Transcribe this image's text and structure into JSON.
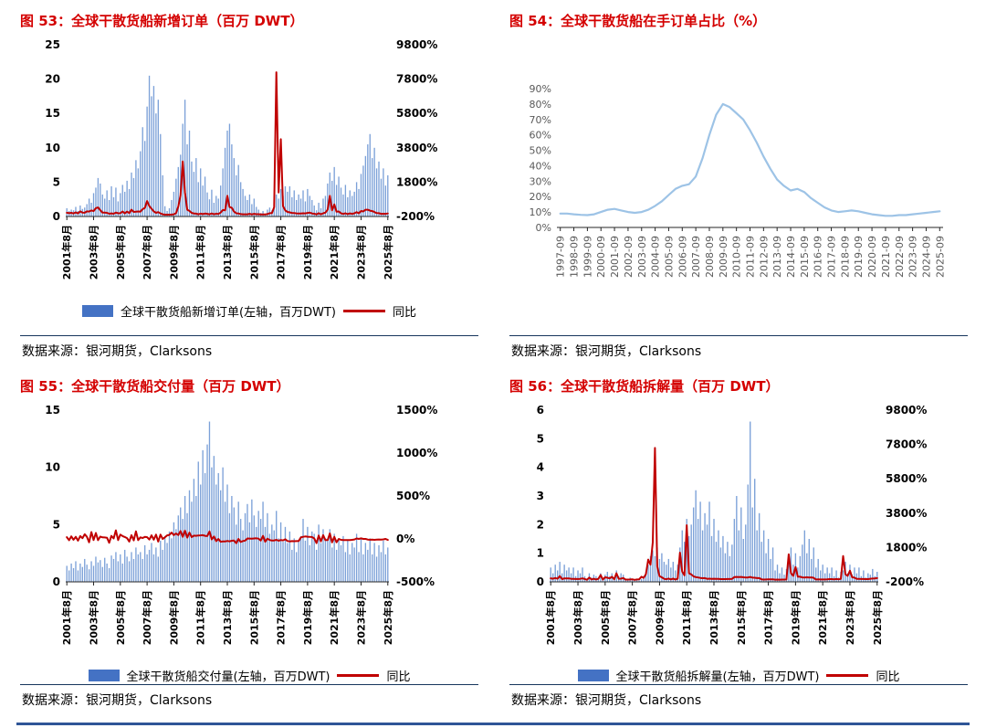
{
  "chart_data": [
    {
      "id": "fig53",
      "type": "combo",
      "title": "图 53：全球干散货船新增订单（百万 DWT）",
      "source": "数据来源：银河期货，Clarksons",
      "bar_color": "#7CA1D8",
      "line_color": "#C00000",
      "legend": [
        {
          "label": "全球干散货船新增订单(左轴，百万DWT)",
          "color": "#4472C4"
        },
        {
          "label": "同比",
          "color": "#C00000"
        }
      ],
      "left_axis": {
        "min": 0,
        "max": 25,
        "tick_vals": [
          0,
          5,
          10,
          15,
          20,
          25
        ],
        "tick_labels": [
          "0",
          "5",
          "10",
          "15",
          "20",
          "25"
        ]
      },
      "right_axis": {
        "min": -200,
        "max": 9800,
        "tick_vals": [
          -200,
          1800,
          3800,
          5800,
          7800,
          9800
        ],
        "tick_labels": [
          "-200%",
          "1800%",
          "3800%",
          "5800%",
          "7800%",
          "9800%"
        ]
      },
      "x_ticks": {
        "idx": [
          0,
          12,
          24,
          36,
          48,
          60,
          72,
          84,
          96,
          108,
          120,
          132,
          144
        ],
        "labels": [
          "2001年8月",
          "2003年8月",
          "2005年8月",
          "2007年8月",
          "2009年8月",
          "2011年8月",
          "2013年8月",
          "2015年8月",
          "2017年8月",
          "2019年8月",
          "2021年8月",
          "2023年8月",
          "2025年8月"
        ]
      },
      "bars": [
        1.2,
        0.8,
        1.0,
        0.9,
        1.4,
        0.8,
        1.6,
        1.1,
        1.3,
        1.8,
        2.6,
        2.0,
        3.4,
        4.2,
        5.6,
        4.8,
        3.2,
        2.6,
        3.8,
        2.4,
        4.4,
        2.8,
        4.2,
        2.2,
        3.4,
        4.6,
        3.6,
        5.2,
        4.0,
        6.4,
        5.6,
        8.2,
        7.0,
        9.5,
        13.0,
        11.0,
        16.0,
        20.5,
        17.5,
        19.0,
        15.0,
        17.0,
        12.0,
        6.0,
        1.5,
        0.8,
        1.2,
        2.4,
        3.6,
        5.5,
        7.2,
        9.0,
        13.5,
        17.0,
        10.5,
        12.5,
        8.0,
        6.5,
        8.5,
        5.0,
        7.0,
        4.5,
        5.8,
        3.5,
        2.5,
        3.9,
        2.0,
        3.0,
        2.6,
        4.5,
        7.0,
        10.0,
        12.5,
        13.5,
        10.5,
        8.5,
        6.0,
        7.5,
        5.0,
        4.0,
        3.0,
        2.4,
        3.2,
        1.8,
        2.6,
        1.4,
        1.0,
        0.5,
        0.8,
        0.4,
        1.0,
        1.3,
        0.9,
        2.2,
        3.2,
        2.6,
        4.0,
        3.0,
        4.4,
        3.6,
        4.4,
        2.8,
        3.8,
        2.4,
        3.2,
        2.6,
        3.8,
        2.2,
        4.0,
        3.0,
        2.4,
        1.6,
        0.9,
        2.0,
        1.2,
        2.6,
        3.0,
        4.8,
        6.4,
        5.2,
        7.2,
        4.6,
        5.8,
        4.2,
        3.2,
        4.6,
        2.8,
        3.8,
        3.0,
        3.6,
        5.0,
        4.0,
        6.2,
        7.4,
        8.8,
        10.5,
        12.0,
        8.5,
        10.0,
        7.0,
        8.0,
        5.5,
        7.0,
        4.5,
        6.0
      ],
      "line_values": [
        20,
        -10,
        15,
        -25,
        40,
        -20,
        100,
        30,
        18,
        100,
        86,
        150,
        113,
        282,
        331,
        167,
        23,
        30,
        12,
        -43,
        -21,
        -42,
        31,
        -15,
        -11,
        92,
        -18,
        86,
        -5,
        191,
        65,
        78,
        94,
        83,
        225,
        300,
        700,
        400,
        250,
        100,
        15,
        55,
        -25,
        -71,
        -91,
        -96,
        -92,
        -86,
        -70,
        -8,
        380,
        1025,
        3000,
        1200,
        192,
        127,
        11,
        -28,
        -37,
        -71,
        -33,
        -64,
        -28,
        -46,
        -71,
        -22,
        -71,
        -33,
        -55,
        29,
        180,
        156,
        1000,
        350,
        304,
        89,
        -14,
        -25,
        -60,
        -70,
        -71,
        -72,
        -47,
        -76,
        -48,
        -65,
        -67,
        -79,
        -75,
        -78,
        -62,
        -7,
        -10,
        340,
        8200,
        1200,
        4300,
        400,
        150,
        64,
        38,
        8,
        -5,
        -20,
        -27,
        -28,
        -14,
        -21,
        5,
        25,
        -25,
        -38,
        -76,
        -9,
        -70,
        -13,
        25,
        200,
        1000,
        160,
        500,
        77,
        93,
        -13,
        -50,
        -12,
        -61,
        -17,
        -48,
        -14,
        56,
        -13,
        121,
        95,
        193,
        192,
        140,
        113,
        61,
        -5,
        -9,
        -48,
        -42,
        -47,
        -25
      ]
    },
    {
      "id": "fig54",
      "type": "line",
      "title": "图 54：全球干散货船在手订单占比（%）",
      "source": "数据来源：银河期货，Clarksons",
      "line_color": "#9DC3E6",
      "left_axis": {
        "min": 0,
        "max": 90,
        "tick_vals": [
          0,
          10,
          20,
          30,
          40,
          50,
          60,
          70,
          80,
          90
        ],
        "tick_labels": [
          "0%",
          "10%",
          "20%",
          "30%",
          "40%",
          "50%",
          "60%",
          "70%",
          "80%",
          "90%"
        ]
      },
      "x_ticks": {
        "idx": [
          0,
          2,
          4,
          6,
          8,
          10,
          12,
          14,
          16,
          18,
          20,
          22,
          24,
          26,
          28,
          30,
          32,
          34,
          36,
          38,
          40,
          42,
          44,
          46,
          48,
          50,
          52,
          54,
          56
        ],
        "labels": [
          "1997-09",
          "1998-09",
          "1999-09",
          "2000-09",
          "2001-09",
          "2002-09",
          "2003-09",
          "2004-09",
          "2005-09",
          "2006-09",
          "2007-09",
          "2008-09",
          "2009-09",
          "2010-09",
          "2011-09",
          "2012-09",
          "2013-09",
          "2014-09",
          "2015-09",
          "2016-09",
          "2017-09",
          "2018-09",
          "2019-09",
          "2020-09",
          "2021-09",
          "2022-09",
          "2023-09",
          "2024-09",
          "2025-09"
        ]
      },
      "line_values": [
        9,
        9,
        8.5,
        8.2,
        8,
        8.5,
        10,
        11.5,
        12,
        11,
        10,
        9.5,
        10,
        11.5,
        14,
        17,
        21,
        25,
        27,
        28,
        33,
        45,
        60,
        73,
        80,
        78,
        74,
        70,
        63,
        55,
        46,
        38,
        31,
        27,
        24,
        25,
        23,
        19,
        16,
        13,
        11,
        10,
        10.5,
        11,
        10.5,
        9.5,
        8.5,
        8,
        7.5,
        7.5,
        8,
        8,
        8.5,
        9,
        9.5,
        10,
        10.5
      ]
    },
    {
      "id": "fig55",
      "type": "combo",
      "title": "图 55：全球干散货船交付量（百万 DWT）",
      "source": "数据来源：银河期货，Clarksons",
      "bar_color": "#7CA1D8",
      "line_color": "#C00000",
      "legend": [
        {
          "label": "全球干散货船交付量(左轴，百万DWT)",
          "color": "#4472C4"
        },
        {
          "label": "同比",
          "color": "#C00000"
        }
      ],
      "left_axis": {
        "min": 0,
        "max": 15,
        "tick_vals": [
          0,
          5,
          10,
          15
        ],
        "tick_labels": [
          "0",
          "5",
          "10",
          "15"
        ]
      },
      "right_axis": {
        "min": -500,
        "max": 1500,
        "tick_vals": [
          -500,
          0,
          500,
          1000,
          1500
        ],
        "tick_labels": [
          "-500%",
          "0%",
          "500%",
          "1000%",
          "1500%"
        ]
      },
      "x_ticks": {
        "idx": [
          0,
          12,
          24,
          36,
          48,
          60,
          72,
          84,
          96,
          108,
          120,
          132,
          144
        ],
        "labels": [
          "2001年8月",
          "2003年8月",
          "2005年8月",
          "2007年8月",
          "2009年8月",
          "2011年8月",
          "2013年8月",
          "2015年8月",
          "2017年8月",
          "2019年8月",
          "2021年8月",
          "2023年8月",
          "2025年8月"
        ]
      },
      "bars": [
        1.4,
        1.0,
        1.6,
        1.2,
        1.8,
        1.0,
        1.6,
        1.3,
        2.0,
        1.5,
        1.1,
        1.8,
        1.4,
        2.2,
        1.7,
        1.9,
        1.3,
        2.1,
        1.6,
        1.2,
        2.3,
        2.0,
        2.6,
        1.8,
        2.4,
        1.6,
        2.8,
        2.2,
        1.8,
        2.6,
        2.0,
        3.0,
        2.4,
        2.6,
        2.0,
        3.2,
        2.4,
        2.8,
        3.4,
        2.4,
        3.0,
        2.2,
        3.6,
        2.8,
        4.0,
        3.4,
        4.4,
        3.8,
        5.2,
        4.6,
        5.8,
        6.5,
        5.5,
        7.5,
        6.0,
        8.0,
        7.0,
        9.0,
        7.5,
        10.5,
        8.5,
        11.5,
        9.5,
        12.0,
        14.0,
        10.0,
        11.0,
        8.5,
        9.5,
        8.0,
        10.0,
        7.0,
        8.5,
        6.0,
        7.5,
        6.5,
        5.0,
        7.0,
        5.5,
        4.5,
        6.0,
        6.8,
        5.2,
        7.2,
        5.8,
        4.8,
        6.2,
        5.5,
        7.0,
        4.8,
        6.0,
        4.2,
        5.0,
        4.5,
        6.2,
        3.8,
        5.2,
        3.5,
        4.8,
        3.4,
        4.4,
        2.8,
        3.8,
        2.6,
        3.6,
        4.0,
        5.5,
        3.6,
        4.8,
        3.2,
        4.4,
        4.2,
        2.8,
        5.0,
        3.4,
        4.6,
        3.8,
        3.6,
        4.6,
        3.0,
        4.2,
        2.8,
        3.8,
        3.2,
        4.0,
        2.6,
        3.6,
        2.4,
        3.4,
        3.0,
        4.2,
        2.6,
        3.8,
        2.4,
        3.4,
        2.8,
        3.8,
        2.4,
        3.4,
        2.2,
        3.2,
        2.6,
        3.6,
        2.4,
        3.0
      ],
      "line_values": [
        20,
        -15,
        30,
        -10,
        25,
        -20,
        33,
        8,
        54,
        25,
        -39,
        80,
        -13,
        69,
        -15,
        27,
        18,
        17,
        14,
        -45,
        35,
        5,
        100,
        -14,
        50,
        33,
        22,
        10,
        -31,
        44,
        -17,
        88,
        -14,
        18,
        11,
        23,
        20,
        -7,
        42,
        -8,
        50,
        -31,
        50,
        0,
        18,
        42,
        47,
        73,
        44,
        64,
        45,
        91,
        25,
        97,
        15,
        74,
        21,
        38,
        36,
        40,
        42,
        44,
        36,
        33,
        87,
        -5,
        29,
        -26,
        0,
        -33,
        -29,
        -30,
        -23,
        -29,
        -21,
        -19,
        -50,
        0,
        -35,
        -25,
        -20,
        5,
        4,
        3,
        5,
        7,
        3,
        -19,
        35,
        -33,
        3,
        -13,
        -19,
        -18,
        -11,
        -21,
        -13,
        -17,
        -4,
        -24,
        -29,
        -26,
        -27,
        -26,
        -25,
        18,
        25,
        29,
        26,
        23,
        22,
        5,
        -49,
        39,
        -29,
        44,
        -14,
        -14,
        64,
        -40,
        24,
        -39,
        0,
        -11,
        -13,
        -13,
        -14,
        -14,
        -11,
        -6,
        5,
        0,
        6,
        0,
        0,
        -7,
        -10,
        -8,
        -11,
        -8,
        -6,
        -7,
        -5,
        0,
        -12
      ]
    },
    {
      "id": "fig56",
      "type": "combo",
      "title": "图 56：全球干散货船拆解量（百万 DWT）",
      "source": "数据来源：银河期货，Clarksons",
      "bar_color": "#7CA1D8",
      "line_color": "#C00000",
      "legend": [
        {
          "label": "全球干散货船拆解量(左轴，百万DWT)",
          "color": "#4472C4"
        },
        {
          "label": "同比",
          "color": "#C00000"
        }
      ],
      "left_axis": {
        "min": 0,
        "max": 6,
        "tick_vals": [
          0,
          1,
          2,
          3,
          4,
          5,
          6
        ],
        "tick_labels": [
          "0",
          "1",
          "2",
          "3",
          "4",
          "5",
          "6"
        ]
      },
      "right_axis": {
        "min": -200,
        "max": 9800,
        "tick_vals": [
          -200,
          1800,
          3800,
          5800,
          7800,
          9800
        ],
        "tick_labels": [
          "-200%",
          "1800%",
          "3800%",
          "5800%",
          "7800%",
          "9800%"
        ]
      },
      "x_ticks": {
        "idx": [
          0,
          12,
          24,
          36,
          48,
          60,
          72,
          84,
          96,
          108,
          120,
          132,
          144
        ],
        "labels": [
          "2001年8月",
          "2003年8月",
          "2005年8月",
          "2007年8月",
          "2009年8月",
          "2011年8月",
          "2013年8月",
          "2015年8月",
          "2017年8月",
          "2019年8月",
          "2021年8月",
          "2023年8月",
          "2025年8月"
        ]
      },
      "bars": [
        0.5,
        0.3,
        0.6,
        0.4,
        0.7,
        0.3,
        0.6,
        0.4,
        0.5,
        0.3,
        0.5,
        0.2,
        0.4,
        0.3,
        0.5,
        0.2,
        0.1,
        0.3,
        0.15,
        0.25,
        0.2,
        0.15,
        0.3,
        0.1,
        0.25,
        0.35,
        0.2,
        0.3,
        0.15,
        0.4,
        0.2,
        0.3,
        0.25,
        0.1,
        0.05,
        0.15,
        0.1,
        0.05,
        0.1,
        0.05,
        0.1,
        0.2,
        0.35,
        0.6,
        0.9,
        1.1,
        0.9,
        1.2,
        0.8,
        1.0,
        0.7,
        0.6,
        0.8,
        0.5,
        0.7,
        0.4,
        0.6,
        1.2,
        1.8,
        1.4,
        2.2,
        1.6,
        2.0,
        2.6,
        3.2,
        2.2,
        2.8,
        1.8,
        2.4,
        2.0,
        2.8,
        1.6,
        2.2,
        1.4,
        1.8,
        1.2,
        1.6,
        1.0,
        1.4,
        0.9,
        1.3,
        2.2,
        3.0,
        1.8,
        2.6,
        1.5,
        2.0,
        3.4,
        5.6,
        2.6,
        3.6,
        1.8,
        2.4,
        1.4,
        1.8,
        1.0,
        1.5,
        0.8,
        1.2,
        0.4,
        0.6,
        0.3,
        0.5,
        0.25,
        0.45,
        0.8,
        1.2,
        0.6,
        1.0,
        0.5,
        0.9,
        1.3,
        1.8,
        1.0,
        1.5,
        0.8,
        1.2,
        0.5,
        0.8,
        0.4,
        0.6,
        0.3,
        0.5,
        0.3,
        0.5,
        0.2,
        0.4,
        0.15,
        0.35,
        0.4,
        0.7,
        0.3,
        0.6,
        0.25,
        0.5,
        0.3,
        0.5,
        0.2,
        0.4,
        0.15,
        0.3,
        0.25,
        0.45,
        0.2,
        0.35
      ],
      "line_values": [
        10,
        -20,
        25,
        -20,
        133,
        -40,
        0,
        0,
        0,
        -25,
        -29,
        -33,
        -33,
        -25,
        0,
        -33,
        -80,
        50,
        -63,
        -17,
        -60,
        -25,
        200,
        -67,
        67,
        40,
        0,
        100,
        -50,
        300,
        -20,
        -14,
        25,
        -67,
        -67,
        -63,
        -50,
        -83,
        -60,
        -50,
        100,
        33,
        250,
        1100,
        800,
        2100,
        7600,
        700,
        129,
        67,
        -22,
        -45,
        -11,
        -58,
        -13,
        -60,
        -14,
        1500,
        400,
        180,
        3100,
        300,
        233,
        117,
        78,
        57,
        27,
        13,
        20,
        -23,
        -13,
        -27,
        -21,
        -22,
        -25,
        -40,
        -43,
        -38,
        -36,
        -36,
        -28,
        83,
        88,
        80,
        86,
        67,
        54,
        55,
        87,
        44,
        38,
        20,
        20,
        -59,
        -68,
        -62,
        -58,
        -56,
        -50,
        -71,
        -67,
        -70,
        -67,
        -69,
        -63,
        1400,
        300,
        150,
        660,
        100,
        100,
        63,
        50,
        67,
        50,
        60,
        33,
        -62,
        -56,
        -60,
        -60,
        -63,
        -58,
        -40,
        -38,
        -50,
        -33,
        -50,
        -30,
        1300,
        240,
        150,
        450,
        67,
        43,
        -25,
        -29,
        -33,
        -33,
        -40,
        -40,
        -17,
        -10,
        0,
        17
      ]
    }
  ]
}
